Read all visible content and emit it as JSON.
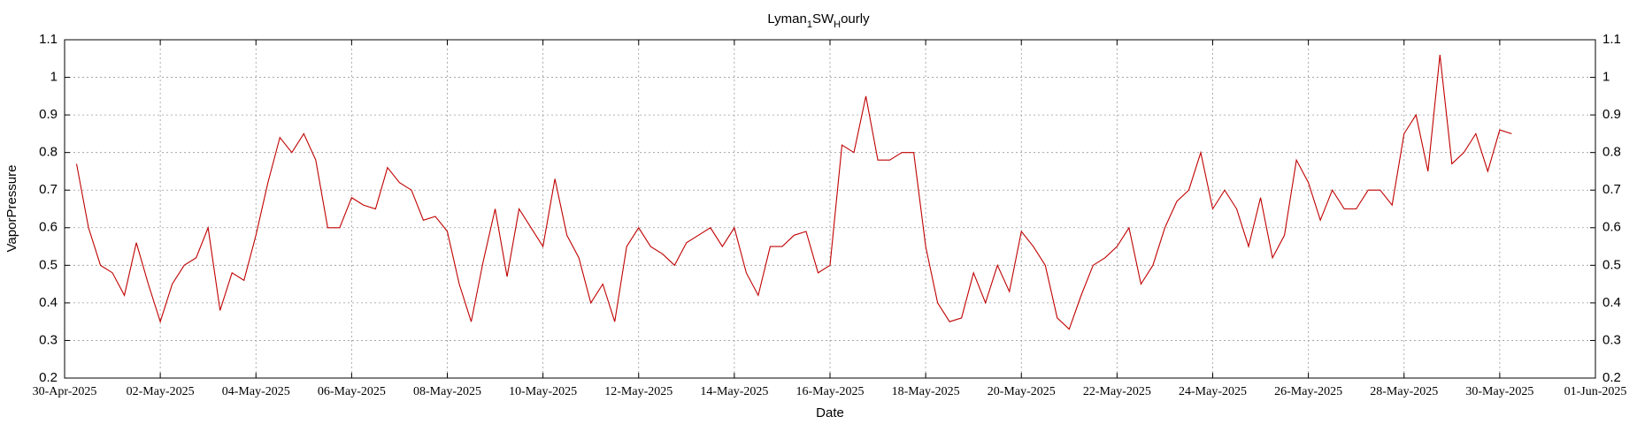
{
  "chart_data": {
    "type": "line",
    "title": [
      "Lyman",
      "1",
      "SW",
      "H",
      "ourly"
    ],
    "xlabel": "Date",
    "ylabel": "VaporPressure",
    "x": [
      "2025-04-30T06:00",
      "2025-04-30T12:00",
      "2025-04-30T18:00",
      "2025-05-01T00:00",
      "2025-05-01T06:00",
      "2025-05-01T12:00",
      "2025-05-01T18:00",
      "2025-05-02T00:00",
      "2025-05-02T06:00",
      "2025-05-02T12:00",
      "2025-05-02T18:00",
      "2025-05-03T00:00",
      "2025-05-03T06:00",
      "2025-05-03T12:00",
      "2025-05-03T18:00",
      "2025-05-04T00:00",
      "2025-05-04T06:00",
      "2025-05-04T12:00",
      "2025-05-04T18:00",
      "2025-05-05T00:00",
      "2025-05-05T06:00",
      "2025-05-05T12:00",
      "2025-05-05T18:00",
      "2025-05-06T00:00",
      "2025-05-06T06:00",
      "2025-05-06T12:00",
      "2025-05-06T18:00",
      "2025-05-07T00:00",
      "2025-05-07T06:00",
      "2025-05-07T12:00",
      "2025-05-07T18:00",
      "2025-05-08T00:00",
      "2025-05-08T06:00",
      "2025-05-08T12:00",
      "2025-05-08T18:00",
      "2025-05-09T00:00",
      "2025-05-09T06:00",
      "2025-05-09T12:00",
      "2025-05-09T18:00",
      "2025-05-10T00:00",
      "2025-05-10T06:00",
      "2025-05-10T12:00",
      "2025-05-10T18:00",
      "2025-05-11T00:00",
      "2025-05-11T06:00",
      "2025-05-11T12:00",
      "2025-05-11T18:00",
      "2025-05-12T00:00",
      "2025-05-12T06:00",
      "2025-05-12T12:00",
      "2025-05-12T18:00",
      "2025-05-13T00:00",
      "2025-05-13T06:00",
      "2025-05-13T12:00",
      "2025-05-13T18:00",
      "2025-05-14T00:00",
      "2025-05-14T06:00",
      "2025-05-14T12:00",
      "2025-05-14T18:00",
      "2025-05-15T00:00",
      "2025-05-15T06:00",
      "2025-05-15T12:00",
      "2025-05-15T18:00",
      "2025-05-16T00:00",
      "2025-05-16T06:00",
      "2025-05-16T12:00",
      "2025-05-16T18:00",
      "2025-05-17T00:00",
      "2025-05-17T06:00",
      "2025-05-17T12:00",
      "2025-05-17T18:00",
      "2025-05-18T00:00",
      "2025-05-18T06:00",
      "2025-05-18T12:00",
      "2025-05-18T18:00",
      "2025-05-19T00:00",
      "2025-05-19T06:00",
      "2025-05-19T12:00",
      "2025-05-19T18:00",
      "2025-05-20T00:00",
      "2025-05-20T06:00",
      "2025-05-20T12:00",
      "2025-05-20T18:00",
      "2025-05-21T00:00",
      "2025-05-21T06:00",
      "2025-05-21T12:00",
      "2025-05-21T18:00",
      "2025-05-22T00:00",
      "2025-05-22T06:00",
      "2025-05-22T12:00",
      "2025-05-22T18:00",
      "2025-05-23T00:00",
      "2025-05-23T06:00",
      "2025-05-23T12:00",
      "2025-05-23T18:00",
      "2025-05-24T00:00",
      "2025-05-24T06:00",
      "2025-05-24T12:00",
      "2025-05-24T18:00",
      "2025-05-25T00:00",
      "2025-05-25T06:00",
      "2025-05-25T12:00",
      "2025-05-25T18:00",
      "2025-05-26T00:00",
      "2025-05-26T06:00",
      "2025-05-26T12:00",
      "2025-05-26T18:00",
      "2025-05-27T00:00",
      "2025-05-27T06:00",
      "2025-05-27T12:00",
      "2025-05-27T18:00",
      "2025-05-28T00:00",
      "2025-05-28T06:00",
      "2025-05-28T12:00",
      "2025-05-28T18:00",
      "2025-05-29T00:00",
      "2025-05-29T06:00",
      "2025-05-29T12:00",
      "2025-05-29T18:00",
      "2025-05-30T00:00",
      "2025-05-30T06:00"
    ],
    "series": [
      {
        "color": "#c00000",
        "values": [
          0.77,
          0.6,
          0.5,
          0.48,
          0.42,
          0.56,
          0.45,
          0.35,
          0.45,
          0.5,
          0.52,
          0.6,
          0.38,
          0.48,
          0.46,
          0.58,
          0.72,
          0.84,
          0.8,
          0.85,
          0.78,
          0.6,
          0.6,
          0.68,
          0.66,
          0.65,
          0.76,
          0.72,
          0.7,
          0.62,
          0.63,
          0.59,
          0.45,
          0.35,
          0.51,
          0.65,
          0.47,
          0.65,
          0.6,
          0.55,
          0.73,
          0.58,
          0.52,
          0.4,
          0.45,
          0.35,
          0.55,
          0.6,
          0.55,
          0.53,
          0.5,
          0.56,
          0.58,
          0.6,
          0.55,
          0.6,
          0.48,
          0.42,
          0.55,
          0.55,
          0.58,
          0.59,
          0.48,
          0.5,
          0.82,
          0.8,
          0.95,
          0.78,
          0.78,
          0.8,
          0.8,
          0.55,
          0.4,
          0.35,
          0.36,
          0.48,
          0.4,
          0.5,
          0.43,
          0.59,
          0.55,
          0.5,
          0.36,
          0.33,
          0.42,
          0.5,
          0.52,
          0.55,
          0.6,
          0.45,
          0.5,
          0.6,
          0.67,
          0.7,
          0.8,
          0.65,
          0.7,
          0.65,
          0.55,
          0.68,
          0.52,
          0.58,
          0.78,
          0.72,
          0.62,
          0.7,
          0.65,
          0.65,
          0.7,
          0.7,
          0.66,
          0.85,
          0.9,
          0.75,
          1.06,
          0.77,
          0.8,
          0.85,
          0.75,
          0.86,
          0.85
        ]
      }
    ],
    "xlim": [
      "2025-04-30",
      "2025-06-01"
    ],
    "xticks": [
      {
        "value": "2025-04-30",
        "label": "30-Apr-2025"
      },
      {
        "value": "2025-05-02",
        "label": "02-May-2025"
      },
      {
        "value": "2025-05-04",
        "label": "04-May-2025"
      },
      {
        "value": "2025-05-06",
        "label": "06-May-2025"
      },
      {
        "value": "2025-05-08",
        "label": "08-May-2025"
      },
      {
        "value": "2025-05-10",
        "label": "10-May-2025"
      },
      {
        "value": "2025-05-12",
        "label": "12-May-2025"
      },
      {
        "value": "2025-05-14",
        "label": "14-May-2025"
      },
      {
        "value": "2025-05-16",
        "label": "16-May-2025"
      },
      {
        "value": "2025-05-18",
        "label": "18-May-2025"
      },
      {
        "value": "2025-05-20",
        "label": "20-May-2025"
      },
      {
        "value": "2025-05-22",
        "label": "22-May-2025"
      },
      {
        "value": "2025-05-24",
        "label": "24-May-2025"
      },
      {
        "value": "2025-05-26",
        "label": "26-May-2025"
      },
      {
        "value": "2025-05-28",
        "label": "28-May-2025"
      },
      {
        "value": "2025-05-30",
        "label": "30-May-2025"
      },
      {
        "value": "2025-06-01",
        "label": "01-Jun-2025"
      }
    ],
    "ylim": [
      0.2,
      1.1
    ],
    "yticks": [
      0.2,
      0.3,
      0.4,
      0.5,
      0.6,
      0.7,
      0.8,
      0.9,
      1,
      1.1
    ],
    "grid": true
  }
}
